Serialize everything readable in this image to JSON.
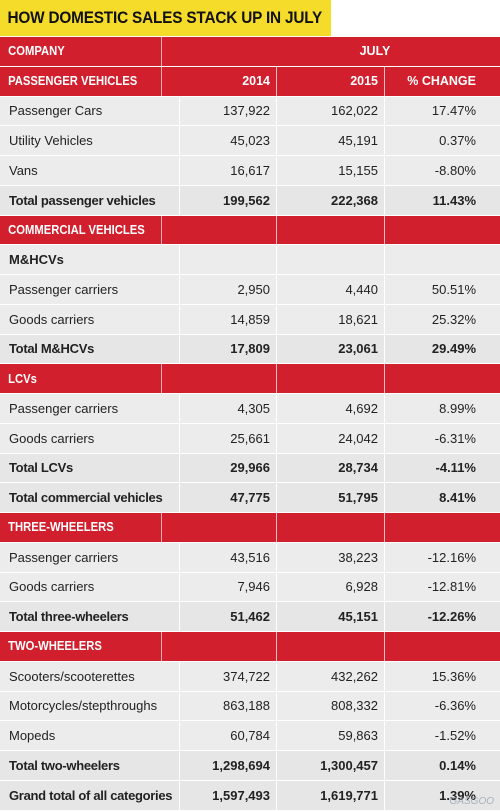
{
  "title": "HOW DOMESTIC SALES STACK UP IN JULY",
  "header": {
    "company": "COMPANY",
    "month": "JULY"
  },
  "rows": [
    {
      "kind": "header",
      "label": "PASSENGER VEHICLES",
      "c1": "2014",
      "c2": "2015",
      "c3": "% CHANGE"
    },
    {
      "kind": "data",
      "label": "Passenger Cars",
      "c1": "137,922",
      "c2": "162,022",
      "c3": "17.47%"
    },
    {
      "kind": "data",
      "label": "Utility Vehicles",
      "c1": "45,023",
      "c2": "45,191",
      "c3": "0.37%"
    },
    {
      "kind": "data",
      "label": "Vans",
      "c1": "16,617",
      "c2": "15,155",
      "c3": "-8.80%"
    },
    {
      "kind": "total",
      "label": "Total passenger vehicles",
      "c1": "199,562",
      "c2": "222,368",
      "c3": "11.43%"
    },
    {
      "kind": "header",
      "label": "COMMERCIAL VEHICLES",
      "c1": "",
      "c2": "",
      "c3": ""
    },
    {
      "kind": "subhead",
      "label": "M&HCVs",
      "c1": "",
      "c2": "",
      "c3": ""
    },
    {
      "kind": "data",
      "label": "Passenger carriers",
      "c1": "2,950",
      "c2": "4,440",
      "c3": "50.51%"
    },
    {
      "kind": "data",
      "label": "Goods carriers",
      "c1": "14,859",
      "c2": "18,621",
      "c3": "25.32%"
    },
    {
      "kind": "total",
      "label": "Total M&HCVs",
      "c1": "17,809",
      "c2": "23,061",
      "c3": "29.49%"
    },
    {
      "kind": "header",
      "label": "LCVs",
      "c1": "",
      "c2": "",
      "c3": ""
    },
    {
      "kind": "data",
      "label": "Passenger carriers",
      "c1": "4,305",
      "c2": "4,692",
      "c3": "8.99%"
    },
    {
      "kind": "data",
      "label": "Goods carriers",
      "c1": "25,661",
      "c2": "24,042",
      "c3": "-6.31%"
    },
    {
      "kind": "total",
      "label": "Total LCVs",
      "c1": "29,966",
      "c2": "28,734",
      "c3": "-4.11%"
    },
    {
      "kind": "total",
      "label": "Total commercial vehicles",
      "c1": "47,775",
      "c2": "51,795",
      "c3": "8.41%"
    },
    {
      "kind": "header",
      "label": "THREE-WHEELERS",
      "c1": "",
      "c2": "",
      "c3": ""
    },
    {
      "kind": "data",
      "label": "Passenger carriers",
      "c1": "43,516",
      "c2": "38,223",
      "c3": "-12.16%"
    },
    {
      "kind": "data",
      "label": "Goods carriers",
      "c1": "7,946",
      "c2": "6,928",
      "c3": "-12.81%"
    },
    {
      "kind": "total",
      "label": "Total three-wheelers",
      "c1": "51,462",
      "c2": "45,151",
      "c3": "-12.26%"
    },
    {
      "kind": "header",
      "label": "TWO-WHEELERS",
      "c1": "",
      "c2": "",
      "c3": ""
    },
    {
      "kind": "data",
      "label": "Scooters/scooterettes",
      "c1": "374,722",
      "c2": "432,262",
      "c3": "15.36%"
    },
    {
      "kind": "data",
      "label": "Motorcycles/stepthroughs",
      "c1": "863,188",
      "c2": "808,332",
      "c3": "-6.36%"
    },
    {
      "kind": "data",
      "label": "Mopeds",
      "c1": "60,784",
      "c2": "59,863",
      "c3": "-1.52%"
    },
    {
      "kind": "total",
      "label": "Total two-wheelers",
      "c1": "1,298,694",
      "c2": "1,300,457",
      "c3": "0.14%"
    },
    {
      "kind": "total",
      "label": "Grand total of all categories",
      "c1": "1,597,493",
      "c2": "1,619,771",
      "c3": "1.39%"
    }
  ],
  "watermark": "GASGOO",
  "colors": {
    "accent_red": "#d21f2e",
    "title_yellow": "#f5dc2a",
    "row_gray": "#ececec"
  }
}
